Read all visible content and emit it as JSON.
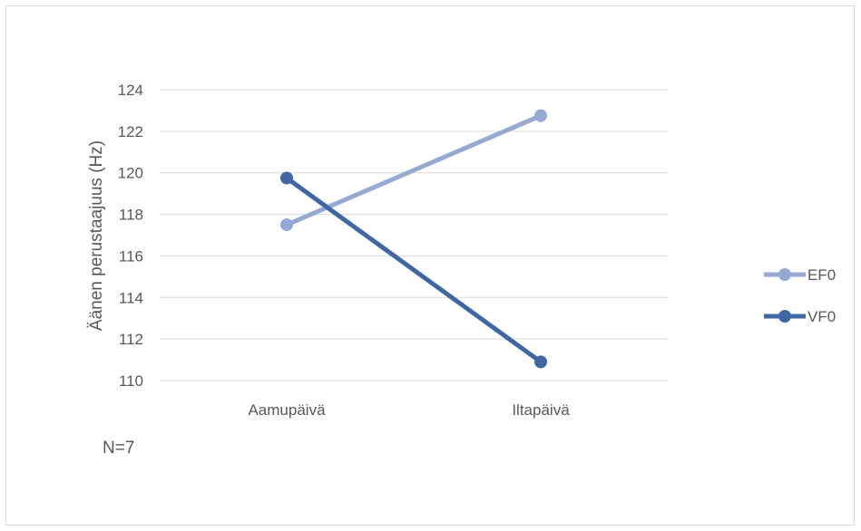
{
  "chart_data": {
    "type": "line",
    "categories": [
      "Aamupäivä",
      "Iltapäivä"
    ],
    "series": [
      {
        "name": "EF0",
        "values": [
          117.5,
          122.75
        ],
        "color": "#95a9d3"
      },
      {
        "name": "VF0",
        "values": [
          119.75,
          110.9
        ],
        "color": "#3e67a4"
      }
    ],
    "ylabel": "Äänen perustaajuus (Hz)",
    "ylim": [
      110,
      124
    ],
    "yticks": [
      "110",
      "112",
      "114",
      "116",
      "118",
      "120",
      "122",
      "124"
    ],
    "grid": true,
    "legend_position": "right"
  },
  "note": "N=7"
}
